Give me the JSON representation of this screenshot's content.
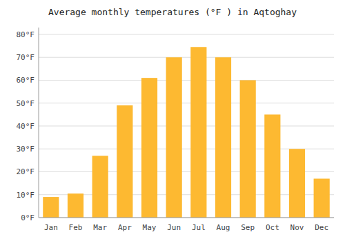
{
  "chart_data": {
    "type": "bar",
    "title": "Average monthly temperatures (°F ) in Aqtoghay",
    "categories": [
      "Jan",
      "Feb",
      "Mar",
      "Apr",
      "May",
      "Jun",
      "Jul",
      "Aug",
      "Sep",
      "Oct",
      "Nov",
      "Dec"
    ],
    "values": [
      9,
      10.5,
      27,
      49,
      61,
      70,
      74.5,
      70,
      60,
      45,
      30,
      17
    ],
    "color": "#FDB931",
    "ylim": [
      0,
      83
    ],
    "yticks": [
      {
        "value": 0,
        "label": "0°F"
      },
      {
        "value": 10,
        "label": "10°F"
      },
      {
        "value": 20,
        "label": "20°F"
      },
      {
        "value": 30,
        "label": "30°F"
      },
      {
        "value": 40,
        "label": "40°F"
      },
      {
        "value": 50,
        "label": "50°F"
      },
      {
        "value": 60,
        "label": "60°F"
      },
      {
        "value": 70,
        "label": "70°F"
      },
      {
        "value": 80,
        "label": "80°F"
      }
    ],
    "grid": true
  }
}
